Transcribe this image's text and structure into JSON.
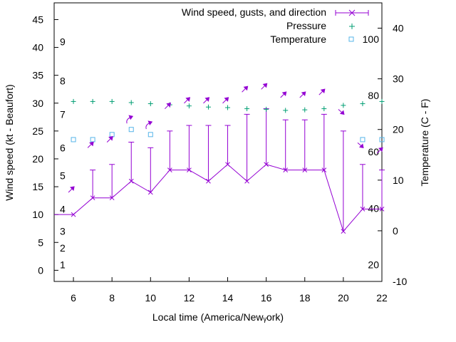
{
  "chart_data": {
    "type": "line",
    "xlabel": "Local time (America/Newᵧork)",
    "ylabel": "Wind speed (kt - Beaufort)",
    "y2label": "Temperature (C - F)",
    "xlim": [
      5,
      22
    ],
    "ylim": [
      -2,
      48
    ],
    "y2lim": [
      -10,
      45
    ],
    "x_ticks": [
      6,
      8,
      10,
      12,
      14,
      16,
      18,
      20,
      22
    ],
    "y_ticks": [
      0,
      5,
      10,
      15,
      20,
      25,
      30,
      35,
      40,
      45
    ],
    "y2_ticks": [
      -10,
      0,
      10,
      20,
      30,
      40
    ],
    "beaufort_labels": [
      {
        "label": "1",
        "y": 1
      },
      {
        "label": "2",
        "y": 4
      },
      {
        "label": "3",
        "y": 7
      },
      {
        "label": "4",
        "y": 11
      },
      {
        "label": "5",
        "y": 17
      },
      {
        "label": "6",
        "y": 22
      },
      {
        "label": "7",
        "y": 28
      },
      {
        "label": "8",
        "y": 34
      },
      {
        "label": "9",
        "y": 41
      }
    ],
    "fahrenheit_labels": [
      {
        "label": "20",
        "y2": -6.7
      },
      {
        "label": "40",
        "y2": 4.4
      },
      {
        "label": "60",
        "y2": 15.6
      },
      {
        "label": "80",
        "y2": 26.7
      },
      {
        "label": "100",
        "y2": 37.8
      }
    ],
    "legend": {
      "placement": "top-right",
      "wind": "Wind speed, gusts, and direction",
      "pressure": "Pressure",
      "temperature": "Temperature"
    },
    "colors": {
      "wind": "#9400d3",
      "pressure": "#009e73",
      "temperature": "#56b4e9"
    },
    "wind": {
      "hours": [
        5,
        6,
        7,
        8,
        9,
        10,
        11,
        12,
        13,
        14,
        15,
        16,
        17,
        18,
        19,
        20,
        21,
        22
      ],
      "speed": [
        10,
        10,
        13,
        13,
        16,
        14,
        18,
        18,
        16,
        19,
        16,
        19,
        18,
        18,
        18,
        7,
        11,
        11
      ],
      "gust": [
        10,
        10,
        18,
        19,
        23,
        22,
        25,
        26,
        26,
        26,
        28,
        29,
        27,
        27,
        28,
        25,
        19,
        18
      ]
    },
    "pressure": {
      "hours": [
        6,
        7,
        8,
        9,
        10,
        11,
        12,
        13,
        14,
        15,
        16,
        17,
        18,
        19,
        20,
        21,
        22
      ],
      "values": [
        30.3,
        30.3,
        30.3,
        30.1,
        29.9,
        29.7,
        29.5,
        29.3,
        29.2,
        29.0,
        28.9,
        28.7,
        28.8,
        29.0,
        29.6,
        29.9,
        30.3
      ]
    },
    "temperature": {
      "hours": [
        6,
        7,
        8,
        9,
        10,
        11,
        12,
        13,
        14,
        15,
        16,
        17,
        18,
        19,
        20,
        21,
        22
      ],
      "values": [
        18,
        18,
        19,
        20,
        19,
        null,
        null,
        null,
        null,
        null,
        null,
        null,
        null,
        null,
        null,
        18,
        18
      ]
    },
    "direction_arrows": [
      {
        "hour": 6,
        "y": 14.5,
        "dir": "ne"
      },
      {
        "hour": 7,
        "y": 22.5,
        "dir": "ne"
      },
      {
        "hour": 8,
        "y": 23.5,
        "dir": "ne"
      },
      {
        "hour": 9,
        "y": 27,
        "dir": "curl"
      },
      {
        "hour": 10,
        "y": 26,
        "dir": "curl"
      },
      {
        "hour": 11,
        "y": 29.5,
        "dir": "ne"
      },
      {
        "hour": 12,
        "y": 30.5,
        "dir": "ne"
      },
      {
        "hour": 13,
        "y": 30.5,
        "dir": "ne"
      },
      {
        "hour": 14,
        "y": 30.5,
        "dir": "ne"
      },
      {
        "hour": 15,
        "y": 32.5,
        "dir": "ne"
      },
      {
        "hour": 16,
        "y": 33,
        "dir": "ne"
      },
      {
        "hour": 17,
        "y": 31.5,
        "dir": "ne"
      },
      {
        "hour": 18,
        "y": 31.5,
        "dir": "ne"
      },
      {
        "hour": 19,
        "y": 32,
        "dir": "ne"
      },
      {
        "hour": 20,
        "y": 28.5,
        "dir": "se"
      },
      {
        "hour": 21,
        "y": 22.5,
        "dir": "se"
      },
      {
        "hour": 22,
        "y": 21.5,
        "dir": "ne"
      }
    ]
  }
}
